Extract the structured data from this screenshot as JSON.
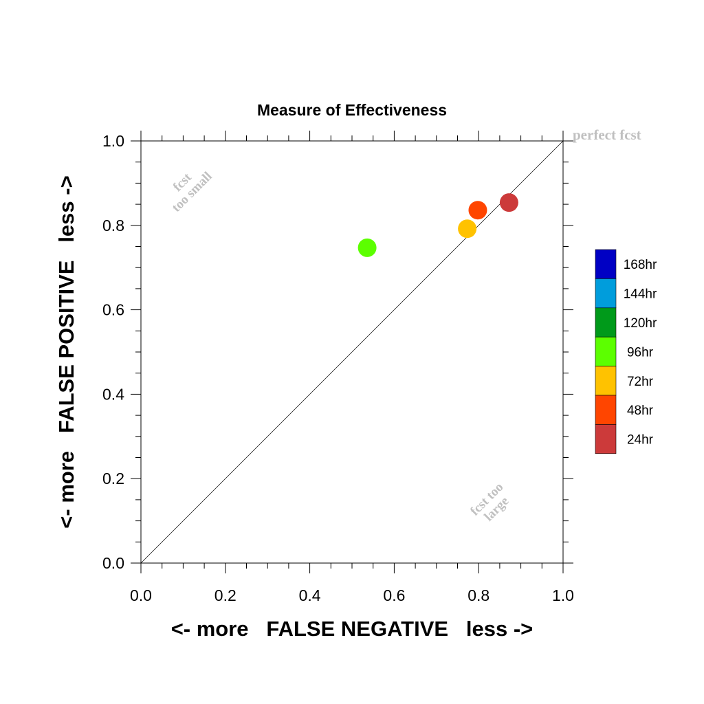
{
  "chart_data": {
    "type": "scatter",
    "title": "Measure of Effectiveness",
    "xlabel": "<- more   FALSE NEGATIVE   less ->",
    "ylabel": "<- more   FALSE POSITIVE   less ->",
    "xlim": [
      0,
      1
    ],
    "ylim": [
      0,
      1
    ],
    "x_ticks": [
      "0.0",
      "0.2",
      "0.4",
      "0.6",
      "0.8",
      "1.0"
    ],
    "y_ticks": [
      "0.0",
      "0.2",
      "0.4",
      "0.6",
      "0.8",
      "1.0"
    ],
    "grid": false,
    "reference_line": {
      "from": [
        0,
        0
      ],
      "to": [
        1,
        1
      ]
    },
    "annotations": {
      "perfect": "perfect fcst",
      "small_line1": "fcst",
      "small_line2": "too small",
      "large_line1": "fcst too",
      "large_line2": "large"
    },
    "points": [
      {
        "label": "96hr",
        "x": 0.536,
        "y": 0.747,
        "color": "#5cff00"
      },
      {
        "label": "72hr",
        "x": 0.773,
        "y": 0.792,
        "color": "#ffc200"
      },
      {
        "label": "48hr",
        "x": 0.798,
        "y": 0.836,
        "color": "#ff4500"
      },
      {
        "label": "24hr",
        "x": 0.872,
        "y": 0.854,
        "color": "#cc3a3a"
      }
    ],
    "legend": {
      "placement": "right",
      "entries": [
        {
          "label": "168hr",
          "color": "#0000c4"
        },
        {
          "label": "144hr",
          "color": "#009ddc"
        },
        {
          "label": "120hr",
          "color": "#009a1a"
        },
        {
          "label": "96hr",
          "color": "#5cff00"
        },
        {
          "label": "72hr",
          "color": "#ffc200"
        },
        {
          "label": "48hr",
          "color": "#ff4500"
        },
        {
          "label": "24hr",
          "color": "#cc3a3a"
        }
      ]
    }
  }
}
